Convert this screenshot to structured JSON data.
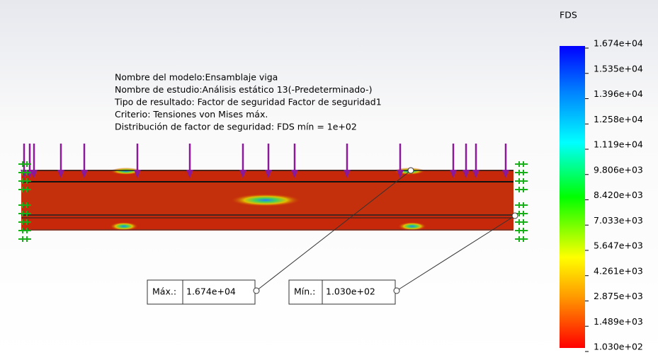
{
  "info": {
    "lines": [
      "Nombre del modelo:Ensamblaje viga",
      "Nombre de estudio:Análisis estático 13(-Predeterminado-)",
      "Tipo de resultado: Factor de seguridad Factor de seguridad1",
      "Criterio: Tensiones von Mises máx.",
      "Distribución de factor de seguridad: FDS mín = 1e+02"
    ]
  },
  "legend": {
    "title": "FDS",
    "labels": [
      "1.674e+04",
      "1.535e+04",
      "1.396e+04",
      "1.258e+04",
      "1.119e+04",
      "9.806e+03",
      "8.420e+03",
      "7.033e+03",
      "5.647e+03",
      "4.261e+03",
      "2.875e+03",
      "1.489e+03",
      "1.030e+02"
    ]
  },
  "max": {
    "label": "Máx.:",
    "value": "1.674e+04"
  },
  "min": {
    "label": "Mín.:",
    "value": "1.030e+02"
  }
}
